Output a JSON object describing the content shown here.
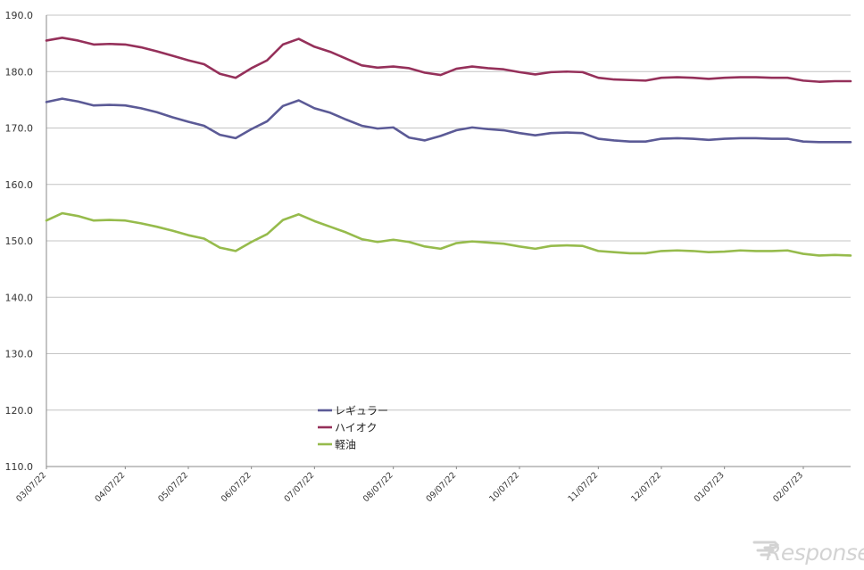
{
  "chart_data": {
    "type": "line",
    "title": "",
    "xlabel": "",
    "ylabel": "",
    "ylim": [
      110,
      190
    ],
    "yticks": [
      "110.0",
      "120.0",
      "130.0",
      "140.0",
      "150.0",
      "160.0",
      "170.0",
      "180.0",
      "190.0"
    ],
    "grid": true,
    "legend_position": "center-bottom",
    "x_tick_labels": [
      {
        "index": 0,
        "label": "03/07/22"
      },
      {
        "index": 5,
        "label": "04/07/22"
      },
      {
        "index": 9,
        "label": "05/07/22"
      },
      {
        "index": 13,
        "label": "06/07/22"
      },
      {
        "index": 17,
        "label": "07/07/22"
      },
      {
        "index": 22,
        "label": "08/07/22"
      },
      {
        "index": 26,
        "label": "09/07/22"
      },
      {
        "index": 30,
        "label": "10/07/22"
      },
      {
        "index": 35,
        "label": "11/07/22"
      },
      {
        "index": 39,
        "label": "12/07/22"
      },
      {
        "index": 43,
        "label": "01/07/23"
      },
      {
        "index": 48,
        "label": "02/07/23"
      }
    ],
    "series": [
      {
        "name": "レギュラー",
        "color": "#5b5a96",
        "values": [
          174.6,
          175.2,
          174.7,
          174.0,
          174.1,
          174.0,
          173.5,
          172.8,
          171.9,
          171.1,
          170.4,
          168.8,
          168.2,
          169.8,
          171.2,
          173.9,
          174.9,
          173.5,
          172.7,
          171.5,
          170.4,
          169.9,
          170.1,
          168.3,
          167.8,
          168.6,
          169.6,
          170.1,
          169.8,
          169.6,
          169.1,
          168.7,
          169.1,
          169.2,
          169.1,
          168.1,
          167.8,
          167.6,
          167.6,
          168.1,
          168.2,
          168.1,
          167.9,
          168.1,
          168.2,
          168.2,
          168.1,
          168.1,
          167.6,
          167.5,
          167.5,
          167.5
        ]
      },
      {
        "name": "ハイオク",
        "color": "#95305a",
        "values": [
          185.5,
          186.0,
          185.5,
          184.8,
          184.9,
          184.8,
          184.3,
          183.6,
          182.8,
          182.0,
          181.3,
          179.6,
          178.9,
          180.6,
          182.0,
          184.8,
          185.8,
          184.4,
          183.5,
          182.3,
          181.1,
          180.7,
          180.9,
          180.6,
          179.8,
          179.4,
          180.5,
          180.9,
          180.6,
          180.4,
          179.9,
          179.5,
          179.9,
          180.0,
          179.9,
          178.9,
          178.6,
          178.5,
          178.4,
          178.9,
          179.0,
          178.9,
          178.7,
          178.9,
          179.0,
          179.0,
          178.9,
          178.9,
          178.4,
          178.2,
          178.3,
          178.3
        ]
      },
      {
        "name": "軽油",
        "color": "#96bb4c",
        "values": [
          153.6,
          154.9,
          154.4,
          153.6,
          153.7,
          153.6,
          153.1,
          152.5,
          151.8,
          151.0,
          150.4,
          148.8,
          148.2,
          149.8,
          151.2,
          153.7,
          154.7,
          153.5,
          152.5,
          151.5,
          150.3,
          149.8,
          150.2,
          149.8,
          149.0,
          148.6,
          149.6,
          149.9,
          149.7,
          149.5,
          149.0,
          148.6,
          149.1,
          149.2,
          149.1,
          148.2,
          148.0,
          147.8,
          147.8,
          148.2,
          148.3,
          148.2,
          148.0,
          148.1,
          148.3,
          148.2,
          148.2,
          148.3,
          147.7,
          147.4,
          147.5,
          147.4
        ]
      }
    ]
  },
  "watermark": {
    "text": "Response.",
    "color": "#d3d3d3"
  }
}
